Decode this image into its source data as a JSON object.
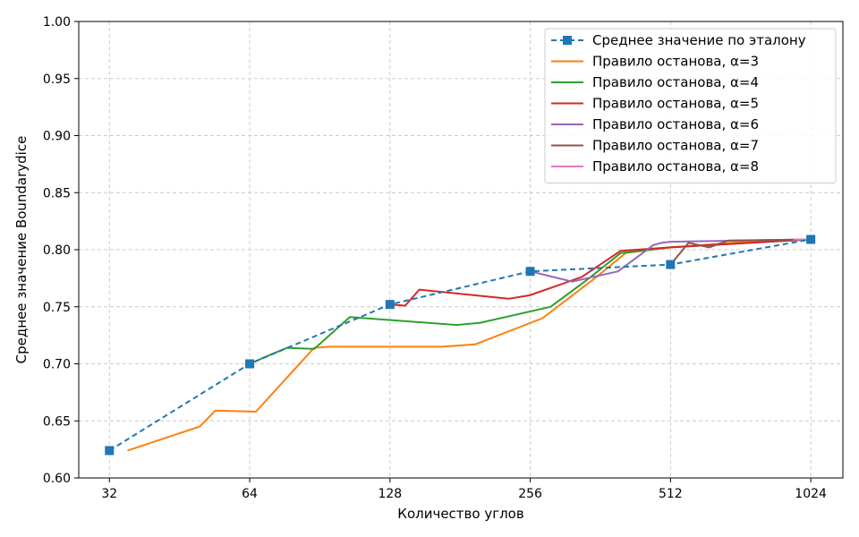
{
  "chart_data": {
    "type": "line",
    "title": "",
    "xlabel": "Количество углов",
    "ylabel": "Среднее значение Boundarydice",
    "xscale": "log2",
    "xlim": [
      27.5,
      1200
    ],
    "ylim": [
      0.6,
      1.0
    ],
    "xticks": [
      32,
      64,
      128,
      256,
      512,
      1024
    ],
    "xtick_labels": [
      "32",
      "64",
      "128",
      "256",
      "512",
      "1024"
    ],
    "yticks": [
      0.6,
      0.65,
      0.7,
      0.75,
      0.8,
      0.85,
      0.9,
      0.95,
      1.0
    ],
    "ytick_labels": [
      "0.60",
      "0.65",
      "0.70",
      "0.75",
      "0.80",
      "0.85",
      "0.90",
      "0.95",
      "1.00"
    ],
    "grid": true,
    "legend_position": "top-right",
    "series": [
      {
        "name": "Среднее значение по эталону",
        "color": "#1f77b4",
        "style": "dashed",
        "marker": "square",
        "points": [
          [
            32,
            0.624
          ],
          [
            64,
            0.7
          ],
          [
            128,
            0.752
          ],
          [
            256,
            0.781
          ],
          [
            512,
            0.787
          ],
          [
            1024,
            0.809
          ]
        ]
      },
      {
        "name": "Правило останова, α=3",
        "color": "#ff7f0e",
        "style": "solid",
        "points": [
          [
            35,
            0.624
          ],
          [
            50,
            0.645
          ],
          [
            54,
            0.659
          ],
          [
            66,
            0.658
          ],
          [
            88,
            0.714
          ],
          [
            95,
            0.715
          ],
          [
            165,
            0.715
          ],
          [
            195,
            0.717
          ],
          [
            272,
            0.74
          ],
          [
            350,
            0.774
          ],
          [
            410,
            0.797
          ],
          [
            512,
            0.802
          ],
          [
            800,
            0.808
          ],
          [
            1024,
            0.809
          ]
        ]
      },
      {
        "name": "Правило останова, α=4",
        "color": "#2ca02c",
        "style": "solid",
        "points": [
          [
            64,
            0.7
          ],
          [
            70,
            0.707
          ],
          [
            77,
            0.714
          ],
          [
            88,
            0.713
          ],
          [
            105,
            0.741
          ],
          [
            178,
            0.734
          ],
          [
            200,
            0.736
          ],
          [
            283,
            0.75
          ],
          [
            340,
            0.774
          ],
          [
            400,
            0.797
          ],
          [
            512,
            0.802
          ],
          [
            1024,
            0.809
          ]
        ]
      },
      {
        "name": "Правило останова, α=5",
        "color": "#d62728",
        "style": "solid",
        "points": [
          [
            128,
            0.752
          ],
          [
            138,
            0.751
          ],
          [
            148,
            0.765
          ],
          [
            230,
            0.757
          ],
          [
            255,
            0.76
          ],
          [
            330,
            0.776
          ],
          [
            400,
            0.799
          ],
          [
            512,
            0.802
          ],
          [
            1024,
            0.809
          ]
        ]
      },
      {
        "name": "Правило останова, α=6",
        "color": "#9467bd",
        "style": "solid",
        "points": [
          [
            256,
            0.781
          ],
          [
            315,
            0.772
          ],
          [
            395,
            0.781
          ],
          [
            470,
            0.804
          ],
          [
            490,
            0.806
          ],
          [
            512,
            0.807
          ],
          [
            1024,
            0.809
          ]
        ]
      },
      {
        "name": "Правило останова, α=7",
        "color": "#8c564b",
        "style": "solid",
        "points": [
          [
            512,
            0.787
          ],
          [
            560,
            0.806
          ],
          [
            620,
            0.802
          ],
          [
            680,
            0.808
          ],
          [
            1024,
            0.809
          ]
        ]
      },
      {
        "name": "Правило останова, α=8",
        "color": "#e377c2",
        "style": "solid",
        "points": [
          [
            940,
            0.809
          ],
          [
            1024,
            0.809
          ]
        ]
      }
    ]
  }
}
